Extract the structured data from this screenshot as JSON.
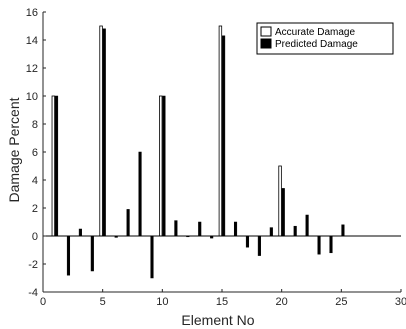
{
  "chart_data": {
    "type": "bar",
    "xlabel": "Element No",
    "ylabel": "Damage Percent",
    "xlim": [
      0,
      30
    ],
    "ylim": [
      -4,
      16
    ],
    "xticks": [
      0,
      5,
      10,
      15,
      20,
      25,
      30
    ],
    "yticks": [
      -4,
      -2,
      0,
      2,
      4,
      6,
      8,
      10,
      12,
      14,
      16
    ],
    "grid": false,
    "legend_position": "top-right",
    "colors": {
      "accurate_fill": "#ffffff",
      "predicted_fill": "#000000",
      "edge": "#000000"
    },
    "x": [
      1,
      2,
      3,
      4,
      5,
      6,
      7,
      8,
      9,
      10,
      11,
      12,
      13,
      14,
      15,
      16,
      17,
      18,
      19,
      20,
      21,
      22,
      23,
      24,
      25
    ],
    "series": [
      {
        "name": "Accurate Damage",
        "values": [
          10,
          0,
          0,
          0,
          15,
          0,
          0,
          0,
          0,
          10,
          0,
          0,
          0,
          0,
          15,
          0,
          0,
          0,
          0,
          5,
          0,
          0,
          0,
          0,
          0
        ]
      },
      {
        "name": "Predicted Damage",
        "values": [
          10,
          -2.8,
          0.5,
          -2.5,
          14.8,
          -0.1,
          1.9,
          6.0,
          -3.0,
          10,
          1.1,
          -0.05,
          1.0,
          -0.15,
          14.3,
          1.0,
          -0.8,
          -1.4,
          0.6,
          3.4,
          0.7,
          1.5,
          -1.3,
          -1.2,
          0.8
        ]
      }
    ]
  }
}
